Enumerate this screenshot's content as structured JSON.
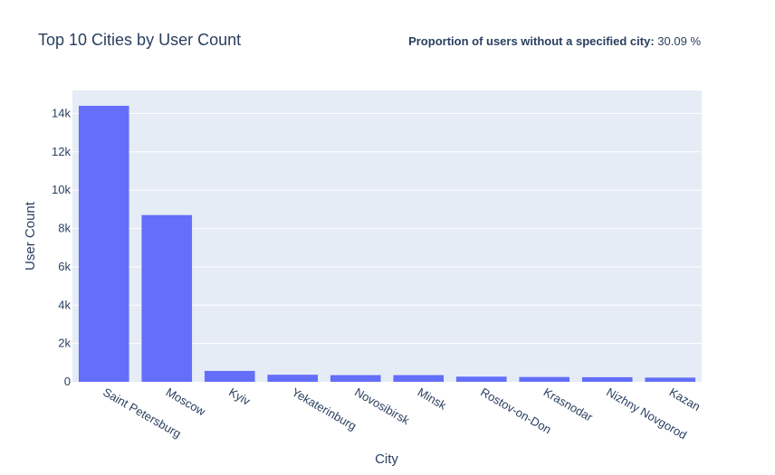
{
  "colors": {
    "bar": "#636efa",
    "plot_bg": "#e5ecf6",
    "text": "#2a3f5f"
  },
  "annotation": {
    "label": "Proportion of users without a specified city:",
    "value": "30.09 %"
  },
  "chart_data": {
    "type": "bar",
    "title": "Top 10 Cities by User Count",
    "xlabel": "City",
    "ylabel": "User Count",
    "categories": [
      "Saint Petersburg",
      "Moscow",
      "Kyiv",
      "Yekaterinburg",
      "Novosibirsk",
      "Minsk",
      "Rostov-on-Don",
      "Krasnodar",
      "Nizhny Novgorod",
      "Kazan"
    ],
    "values": [
      14400,
      8700,
      570,
      370,
      350,
      350,
      270,
      250,
      240,
      220
    ],
    "ylim": [
      0,
      15200
    ],
    "yticks": [
      0,
      2000,
      4000,
      6000,
      8000,
      10000,
      12000,
      14000
    ],
    "ytick_labels": [
      "0",
      "2k",
      "4k",
      "6k",
      "8k",
      "10k",
      "12k",
      "14k"
    ],
    "grid": true,
    "legend": "none"
  }
}
